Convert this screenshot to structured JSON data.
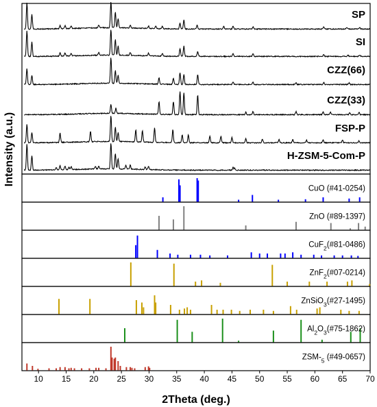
{
  "chart_data": {
    "type": "line",
    "xlabel": "2Theta (deg.)",
    "ylabel": "Intensity (a.u.)",
    "xlim": [
      7,
      70
    ],
    "xticks": [
      10,
      15,
      20,
      25,
      30,
      35,
      40,
      45,
      50,
      55,
      60,
      65,
      70
    ],
    "grid": false,
    "patterns": [
      {
        "name": "SP",
        "peaks": [
          [
            7.9,
            1.0
          ],
          [
            8.8,
            0.55
          ],
          [
            13.9,
            0.12
          ],
          [
            14.8,
            0.12
          ],
          [
            15.9,
            0.1
          ],
          [
            20.9,
            0.1
          ],
          [
            23.1,
            1.0
          ],
          [
            23.9,
            0.6
          ],
          [
            24.4,
            0.35
          ],
          [
            26.6,
            0.12
          ],
          [
            29.9,
            0.1
          ],
          [
            31.2,
            0.1
          ],
          [
            32.4,
            0.1
          ],
          [
            35.6,
            0.22
          ],
          [
            36.3,
            0.35
          ],
          [
            38.7,
            0.15
          ],
          [
            43.5,
            0.1
          ],
          [
            45.2,
            0.12
          ],
          [
            48.8,
            0.08
          ],
          [
            61.6,
            0.08
          ],
          [
            65.8,
            0.06
          ],
          [
            68.1,
            0.06
          ]
        ]
      },
      {
        "name": "SI",
        "peaks": [
          [
            7.9,
            1.0
          ],
          [
            8.8,
            0.55
          ],
          [
            13.9,
            0.12
          ],
          [
            14.8,
            0.12
          ],
          [
            15.9,
            0.1
          ],
          [
            20.9,
            0.1
          ],
          [
            23.1,
            1.0
          ],
          [
            23.9,
            0.6
          ],
          [
            24.4,
            0.35
          ],
          [
            26.6,
            0.12
          ],
          [
            29.9,
            0.1
          ],
          [
            32.4,
            0.1
          ],
          [
            35.6,
            0.3
          ],
          [
            36.3,
            0.4
          ],
          [
            38.8,
            0.2
          ],
          [
            45.2,
            0.1
          ],
          [
            48.8,
            0.1
          ],
          [
            61.6,
            0.08
          ],
          [
            66.0,
            0.06
          ],
          [
            68.1,
            0.06
          ]
        ]
      },
      {
        "name": "CZZ(66)",
        "peaks": [
          [
            7.9,
            0.6
          ],
          [
            8.8,
            0.35
          ],
          [
            23.1,
            1.0
          ],
          [
            23.9,
            0.5
          ],
          [
            24.4,
            0.3
          ],
          [
            31.8,
            0.25
          ],
          [
            34.4,
            0.25
          ],
          [
            35.6,
            0.45
          ],
          [
            36.3,
            0.4
          ],
          [
            38.8,
            0.38
          ],
          [
            45.2,
            0.1
          ],
          [
            48.8,
            0.1
          ],
          [
            56.6,
            0.08
          ],
          [
            61.6,
            0.08
          ],
          [
            66.2,
            0.06
          ]
        ]
      },
      {
        "name": "CZZ(33)",
        "peaks": [
          [
            23.1,
            0.35
          ],
          [
            24.0,
            0.2
          ],
          [
            31.8,
            0.5
          ],
          [
            34.4,
            0.5
          ],
          [
            35.6,
            0.9
          ],
          [
            36.3,
            0.85
          ],
          [
            38.8,
            0.75
          ],
          [
            47.5,
            0.1
          ],
          [
            48.8,
            0.12
          ],
          [
            56.6,
            0.12
          ],
          [
            61.5,
            0.1
          ],
          [
            62.8,
            0.1
          ],
          [
            66.3,
            0.08
          ],
          [
            68.0,
            0.08
          ]
        ]
      },
      {
        "name": "FSP-P",
        "peaks": [
          [
            7.9,
            0.7
          ],
          [
            8.8,
            0.4
          ],
          [
            13.9,
            0.35
          ],
          [
            19.4,
            0.4
          ],
          [
            23.1,
            1.0
          ],
          [
            23.9,
            0.55
          ],
          [
            24.4,
            0.35
          ],
          [
            27.6,
            0.45
          ],
          [
            28.8,
            0.45
          ],
          [
            31.0,
            0.55
          ],
          [
            34.3,
            0.5
          ],
          [
            36.0,
            0.3
          ],
          [
            37.1,
            0.3
          ],
          [
            41.0,
            0.25
          ],
          [
            43.0,
            0.25
          ],
          [
            45.0,
            0.2
          ],
          [
            47.5,
            0.15
          ],
          [
            50.5,
            0.15
          ],
          [
            53.5,
            0.12
          ],
          [
            56.0,
            0.12
          ],
          [
            58.5,
            0.1
          ],
          [
            61.5,
            0.12
          ],
          [
            65.0,
            0.1
          ],
          [
            68.0,
            0.08
          ]
        ]
      },
      {
        "name": "H-ZSM-5-Com-P",
        "peaks": [
          [
            7.9,
            1.0
          ],
          [
            8.8,
            0.55
          ],
          [
            13.2,
            0.1
          ],
          [
            13.9,
            0.15
          ],
          [
            14.8,
            0.15
          ],
          [
            15.5,
            0.1
          ],
          [
            15.9,
            0.12
          ],
          [
            20.3,
            0.1
          ],
          [
            20.9,
            0.1
          ],
          [
            23.1,
            1.0
          ],
          [
            23.9,
            0.6
          ],
          [
            24.4,
            0.4
          ],
          [
            25.8,
            0.15
          ],
          [
            26.6,
            0.15
          ],
          [
            29.3,
            0.1
          ],
          [
            29.9,
            0.12
          ],
          [
            45.2,
            0.1
          ],
          [
            45.5,
            0.08
          ]
        ]
      }
    ],
    "references": [
      {
        "name": "CuO (#41-0254)",
        "color": "#0000ff",
        "peaks": [
          [
            32.5,
            0.2
          ],
          [
            35.4,
            0.95
          ],
          [
            35.6,
            0.7
          ],
          [
            38.7,
            1.0
          ],
          [
            38.9,
            0.9
          ],
          [
            46.2,
            0.1
          ],
          [
            48.7,
            0.3
          ],
          [
            53.4,
            0.1
          ],
          [
            58.3,
            0.12
          ],
          [
            61.5,
            0.2
          ],
          [
            66.2,
            0.15
          ],
          [
            68.1,
            0.2
          ]
        ]
      },
      {
        "name": "ZnO (#89-1397)",
        "color": "#808080",
        "peaks": [
          [
            31.8,
            0.6
          ],
          [
            34.4,
            0.45
          ],
          [
            36.3,
            1.0
          ],
          [
            47.5,
            0.2
          ],
          [
            56.6,
            0.35
          ],
          [
            62.9,
            0.3
          ],
          [
            66.4,
            0.08
          ],
          [
            67.9,
            0.3
          ],
          [
            69.1,
            0.15
          ]
        ]
      },
      {
        "name": "CuF2(#81-0486)",
        "color": "#0000ff",
        "peaks": [
          [
            27.6,
            0.55
          ],
          [
            27.9,
            0.95
          ],
          [
            31.5,
            0.35
          ],
          [
            33.8,
            0.2
          ],
          [
            35.2,
            0.15
          ],
          [
            37.5,
            0.15
          ],
          [
            39.3,
            0.15
          ],
          [
            41.0,
            0.12
          ],
          [
            44.2,
            0.12
          ],
          [
            48.5,
            0.25
          ],
          [
            50.0,
            0.2
          ],
          [
            51.4,
            0.2
          ],
          [
            53.8,
            0.2
          ],
          [
            54.6,
            0.2
          ],
          [
            56.0,
            0.25
          ],
          [
            57.5,
            0.15
          ],
          [
            59.8,
            0.15
          ],
          [
            61.2,
            0.12
          ],
          [
            63.5,
            0.12
          ],
          [
            65.0,
            0.12
          ],
          [
            66.6,
            0.12
          ],
          [
            67.8,
            0.1
          ]
        ]
      },
      {
        "name": "ZnF2(#07-0214)",
        "color": "#c8a000",
        "peaks": [
          [
            26.7,
            1.0
          ],
          [
            34.5,
            0.95
          ],
          [
            38.4,
            0.2
          ],
          [
            39.5,
            0.25
          ],
          [
            42.9,
            0.15
          ],
          [
            52.3,
            0.9
          ],
          [
            55.0,
            0.2
          ],
          [
            59.0,
            0.2
          ],
          [
            62.2,
            0.2
          ],
          [
            65.9,
            0.2
          ],
          [
            66.7,
            0.25
          ],
          [
            69.9,
            0.1
          ]
        ]
      },
      {
        "name": "ZnSiO3(#27-1495)",
        "color": "#c8a000",
        "peaks": [
          [
            13.7,
            0.65
          ],
          [
            19.3,
            0.65
          ],
          [
            27.7,
            0.6
          ],
          [
            28.7,
            0.5
          ],
          [
            29.0,
            0.3
          ],
          [
            31.0,
            0.8
          ],
          [
            31.2,
            0.5
          ],
          [
            33.9,
            0.4
          ],
          [
            35.5,
            0.2
          ],
          [
            36.4,
            0.25
          ],
          [
            36.9,
            0.3
          ],
          [
            37.5,
            0.2
          ],
          [
            41.3,
            0.4
          ],
          [
            42.3,
            0.2
          ],
          [
            43.4,
            0.2
          ],
          [
            44.9,
            0.2
          ],
          [
            46.4,
            0.15
          ],
          [
            48.3,
            0.2
          ],
          [
            50.7,
            0.2
          ],
          [
            52.5,
            0.15
          ],
          [
            55.6,
            0.35
          ],
          [
            56.7,
            0.2
          ],
          [
            60.4,
            0.25
          ],
          [
            60.9,
            0.3
          ],
          [
            64.7,
            0.2
          ],
          [
            66.2,
            0.15
          ],
          [
            68.0,
            0.15
          ]
        ]
      },
      {
        "name": "Al2O3(#75-1862)",
        "color": "#1a8f1a",
        "peaks": [
          [
            25.6,
            0.6
          ],
          [
            35.1,
            0.95
          ],
          [
            37.8,
            0.45
          ],
          [
            43.3,
            1.0
          ],
          [
            46.2,
            0.08
          ],
          [
            52.5,
            0.5
          ],
          [
            57.5,
            0.95
          ],
          [
            61.3,
            0.12
          ],
          [
            66.5,
            0.45
          ],
          [
            68.2,
            0.6
          ]
        ]
      },
      {
        "name": "ZSM-5 (#49-0657)",
        "color": "#c0392b",
        "peaks": [
          [
            7.9,
            0.3
          ],
          [
            8.9,
            0.2
          ],
          [
            9.9,
            0.08
          ],
          [
            11.9,
            0.1
          ],
          [
            13.2,
            0.1
          ],
          [
            13.9,
            0.15
          ],
          [
            14.8,
            0.15
          ],
          [
            15.5,
            0.1
          ],
          [
            15.9,
            0.12
          ],
          [
            16.5,
            0.1
          ],
          [
            17.8,
            0.1
          ],
          [
            19.2,
            0.1
          ],
          [
            20.4,
            0.12
          ],
          [
            20.9,
            0.12
          ],
          [
            22.2,
            0.1
          ],
          [
            23.1,
            1.0
          ],
          [
            23.3,
            0.55
          ],
          [
            23.7,
            0.5
          ],
          [
            23.9,
            0.55
          ],
          [
            24.4,
            0.4
          ],
          [
            24.8,
            0.2
          ],
          [
            25.9,
            0.15
          ],
          [
            26.6,
            0.15
          ],
          [
            26.9,
            0.12
          ],
          [
            27.4,
            0.1
          ],
          [
            29.3,
            0.15
          ],
          [
            29.9,
            0.18
          ],
          [
            30.1,
            0.12
          ]
        ]
      }
    ]
  }
}
